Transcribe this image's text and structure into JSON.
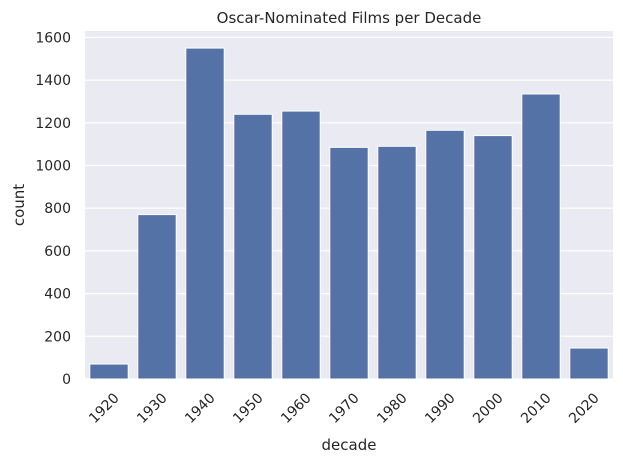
{
  "chart_data": {
    "type": "bar",
    "title": "Oscar-Nominated Films per Decade",
    "xlabel": "decade",
    "ylabel": "count",
    "categories": [
      "1920",
      "1930",
      "1940",
      "1950",
      "1960",
      "1970",
      "1980",
      "1990",
      "2000",
      "2010",
      "2020"
    ],
    "values": [
      70,
      770,
      1550,
      1240,
      1255,
      1085,
      1090,
      1165,
      1140,
      1335,
      145
    ],
    "ylim": [
      0,
      1630
    ],
    "yticks": [
      0,
      200,
      400,
      600,
      800,
      1000,
      1200,
      1400,
      1600
    ],
    "grid": true,
    "colors": {
      "bar": "#5572a6",
      "background": "#eaeaf2",
      "grid": "#ffffff"
    }
  }
}
